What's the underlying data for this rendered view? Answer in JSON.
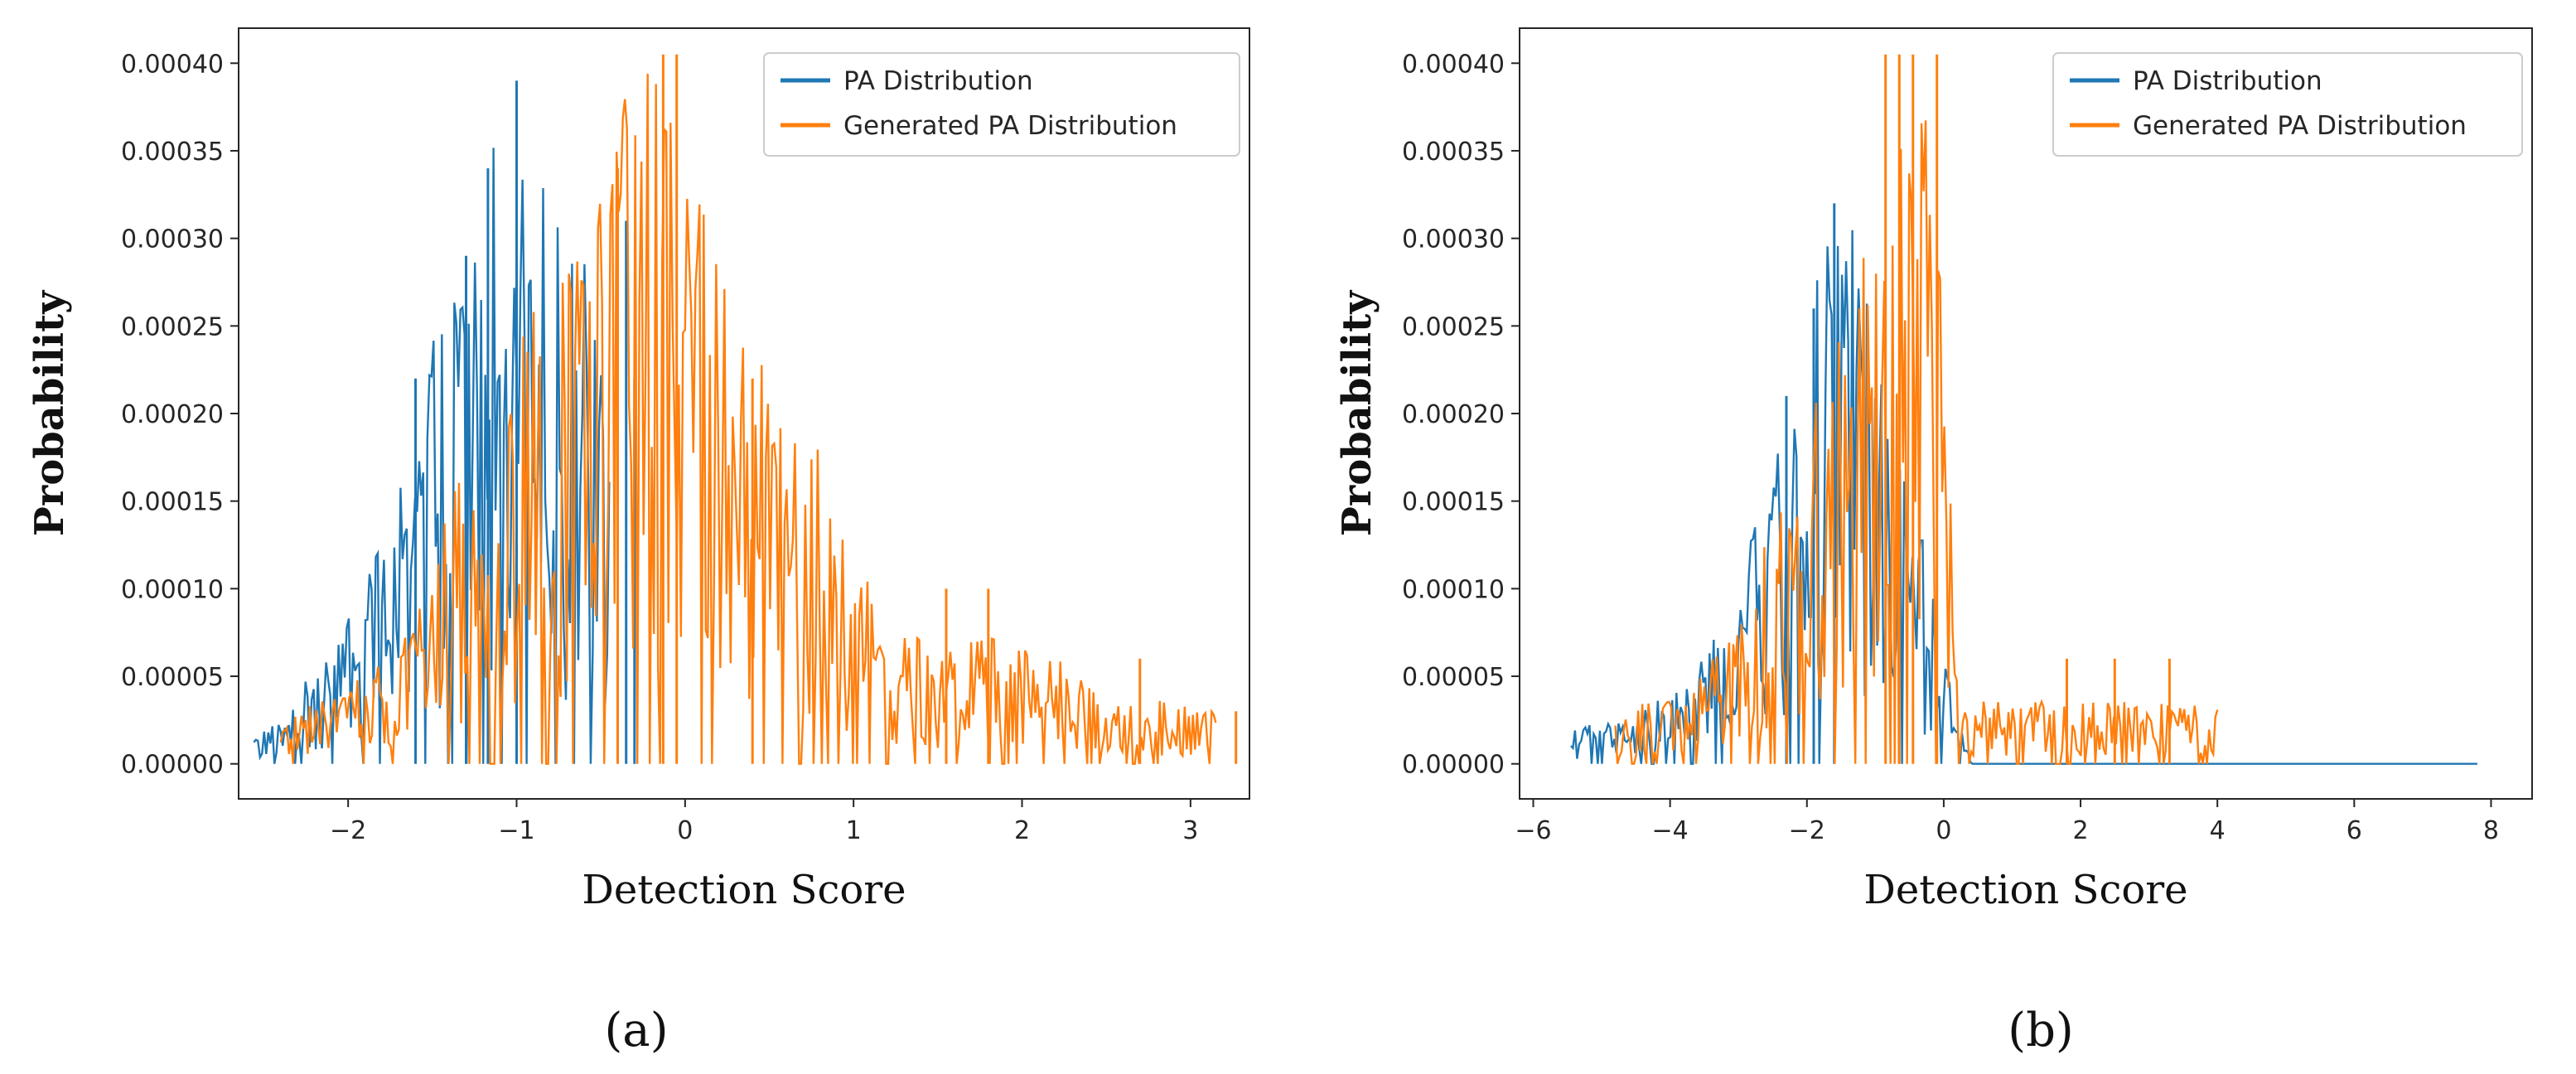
{
  "colors": {
    "pa": "#1f77b4",
    "generated": "#ff7f0e",
    "axis": "#262626"
  },
  "chart_data": [
    {
      "type": "line",
      "caption": "(a)",
      "xlabel": "Detection Score",
      "ylabel": "Probability",
      "xlim": [
        -2.65,
        3.35
      ],
      "ylim": [
        -2e-05,
        0.00042
      ],
      "xticks": [
        -2,
        -1,
        0,
        1,
        2,
        3
      ],
      "xtick_labels": [
        "−2",
        "−1",
        "0",
        "1",
        "2",
        "3"
      ],
      "yticks": [
        0,
        5e-05,
        0.0001,
        0.00015,
        0.0002,
        0.00025,
        0.0003,
        0.00035,
        0.0004
      ],
      "ytick_labels": [
        "0.00000",
        "0.00005",
        "0.00010",
        "0.00015",
        "0.00020",
        "0.00025",
        "0.00030",
        "0.00035",
        "0.00040"
      ],
      "legend_position": "top-right",
      "series": [
        {
          "name": "PA Distribution",
          "x": [
            -2.56,
            -2.5,
            -2.4,
            -2.3,
            -2.2,
            -2.1,
            -2.0,
            -1.9,
            -1.8,
            -1.7,
            -1.6,
            -1.5,
            -1.4,
            -1.3,
            -1.2,
            -1.1,
            -1.0,
            -0.9,
            -0.8,
            -0.7,
            -0.6,
            -0.5,
            -0.45
          ],
          "y": [
            1.7e-05,
            1.7e-05,
            2e-05,
            3.5e-05,
            5e-05,
            6e-05,
            8e-05,
            0.0001,
            0.000125,
            0.00015,
            0.00017,
            0.0002,
            0.00022,
            0.00025,
            0.00028,
            0.00031,
            0.00034,
            0.00031,
            0.00027,
            0.00024,
            0.00024,
            0.00023,
            0.0002
          ],
          "spikes": [
            [
              -1.0,
              0.00039
            ],
            [
              -1.17,
              0.00034
            ],
            [
              -1.3,
              0.00029
            ],
            [
              -1.6,
              0.00022
            ],
            [
              -0.35,
              0.00031
            ],
            [
              -0.3,
              0.00022
            ]
          ]
        },
        {
          "name": "Generated PA Distribution",
          "x": [
            -2.4,
            -2.2,
            -2.0,
            -1.8,
            -1.6,
            -1.4,
            -1.2,
            -1.0,
            -0.8,
            -0.6,
            -0.4,
            -0.2,
            0.0,
            0.2,
            0.4,
            0.6,
            0.8,
            1.0,
            1.2,
            1.4,
            1.6,
            1.8,
            2.0,
            2.2,
            2.4,
            2.6,
            2.8,
            3.0,
            3.15
          ],
          "y": [
            2e-05,
            3e-05,
            4e-05,
            5e-05,
            8e-05,
            0.000125,
            0.00016,
            0.0002,
            0.00024,
            0.00025,
            0.00031,
            0.00034,
            0.00029,
            0.00024,
            0.0002,
            0.00017,
            0.00015,
            0.0001,
            7e-05,
            6e-05,
            6e-05,
            6e-05,
            6e-05,
            5e-05,
            4e-05,
            3e-05,
            3e-05,
            3e-05,
            2.5e-05
          ],
          "spikes": [
            [
              -0.13,
              0.000405
            ],
            [
              -0.05,
              0.000405
            ],
            [
              -0.4,
              0.00034
            ],
            [
              0.4,
              0.00022
            ],
            [
              1.55,
              0.0001
            ],
            [
              1.8,
              0.0001
            ],
            [
              2.7,
              6e-05
            ],
            [
              3.27,
              3e-05
            ]
          ]
        }
      ]
    },
    {
      "type": "line",
      "caption": "(b)",
      "xlabel": "Detection Score",
      "ylabel": "Probability",
      "xlim": [
        -6.2,
        8.6
      ],
      "ylim": [
        -2e-05,
        0.00042
      ],
      "xticks": [
        -6,
        -4,
        -2,
        0,
        2,
        4,
        6,
        8
      ],
      "xtick_labels": [
        "−6",
        "−4",
        "−2",
        "0",
        "2",
        "4",
        "6",
        "8"
      ],
      "yticks": [
        0,
        5e-05,
        0.0001,
        0.00015,
        0.0002,
        0.00025,
        0.0003,
        0.00035,
        0.0004
      ],
      "ytick_labels": [
        "0.00000",
        "0.00005",
        "0.00010",
        "0.00015",
        "0.00020",
        "0.00025",
        "0.00030",
        "0.00035",
        "0.00040"
      ],
      "legend_position": "top-right",
      "series": [
        {
          "name": "PA Distribution",
          "x": [
            -5.45,
            -5.0,
            -4.6,
            -4.2,
            -3.8,
            -3.4,
            -3.0,
            -2.6,
            -2.2,
            -1.8,
            -1.4,
            -1.0,
            -0.6,
            -0.2,
            0.4,
            2.0,
            4.0,
            6.0,
            7.8
          ],
          "y": [
            1.7e-05,
            2e-05,
            2e-05,
            3e-05,
            4e-05,
            6e-05,
            9e-05,
            0.00013,
            0.00018,
            0.00024,
            0.00027,
            0.0002,
            0.00015,
            0.0001,
            0.0,
            0.0,
            0.0,
            0.0,
            0.0
          ],
          "spikes": [
            [
              -1.6,
              0.00032
            ],
            [
              -1.9,
              0.00026
            ],
            [
              -2.3,
              0.00021
            ]
          ]
        },
        {
          "name": "Generated PA Distribution",
          "x": [
            -4.8,
            -4.4,
            -4.0,
            -3.6,
            -3.2,
            -2.8,
            -2.4,
            -2.0,
            -1.6,
            -1.2,
            -0.8,
            -0.4,
            -0.1,
            0.2,
            1.0,
            2.0,
            3.0,
            4.0
          ],
          "y": [
            2e-05,
            3e-05,
            3e-05,
            4e-05,
            6e-05,
            9e-05,
            0.00012,
            0.00017,
            0.00021,
            0.00025,
            0.00031,
            0.00035,
            0.00033,
            3e-05,
            3e-05,
            3e-05,
            3e-05,
            3e-05
          ],
          "spikes": [
            [
              -0.85,
              0.000405
            ],
            [
              -0.65,
              0.000405
            ],
            [
              -0.45,
              0.000405
            ],
            [
              -0.1,
              0.000405
            ],
            [
              1.8,
              6e-05
            ],
            [
              2.5,
              6e-05
            ],
            [
              3.3,
              6e-05
            ]
          ]
        }
      ]
    }
  ]
}
